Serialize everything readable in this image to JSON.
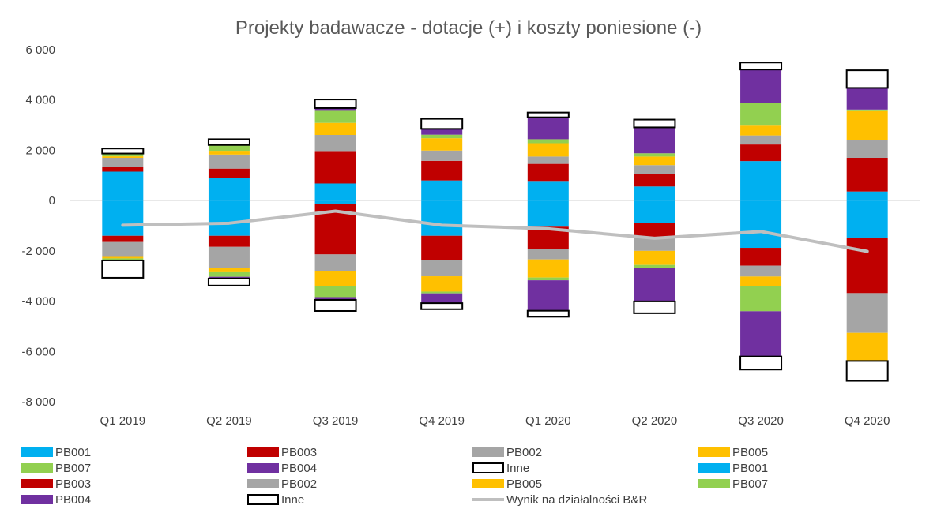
{
  "chart_data": {
    "type": "bar",
    "stacked": true,
    "title": "Projekty badawacze - dotacje (+) i koszty poniesione (-)",
    "xlabel": "",
    "ylabel": "",
    "categories": [
      "Q1 2019",
      "Q2 2019",
      "Q3 2019",
      "Q4 2019",
      "Q1 2020",
      "Q2 2020",
      "Q3 2020",
      "Q4 2020"
    ],
    "ylim": [
      -8000,
      6000
    ],
    "yticks": [
      6000,
      4000,
      2000,
      0,
      -2000,
      -4000,
      -6000,
      -8000
    ],
    "ytick_labels": [
      "6 000",
      "4 000",
      "2 000",
      "0",
      "-2 000",
      "-4 000",
      "-6 000",
      "-8 000"
    ],
    "grid": false,
    "legend_position": "bottom",
    "series_positive": [
      {
        "name": "PB001",
        "color": "#00B0F0",
        "values": [
          1150,
          900,
          680,
          800,
          780,
          560,
          1570,
          360
        ]
      },
      {
        "name": "PB003",
        "color": "#C00000",
        "values": [
          180,
          370,
          1290,
          780,
          680,
          500,
          660,
          1340
        ]
      },
      {
        "name": "PB002",
        "color": "#A5A5A5",
        "values": [
          370,
          560,
          640,
          410,
          290,
          350,
          360,
          700
        ]
      },
      {
        "name": "PB005",
        "color": "#FFC000",
        "values": [
          60,
          150,
          480,
          490,
          530,
          340,
          390,
          1160
        ]
      },
      {
        "name": "PB007",
        "color": "#92D050",
        "values": [
          110,
          230,
          480,
          140,
          160,
          130,
          910,
          60
        ]
      },
      {
        "name": "PB004",
        "color": "#7030A0",
        "values": [
          0,
          0,
          110,
          230,
          870,
          1030,
          1320,
          860
        ]
      },
      {
        "name": "Inne",
        "color": "#FFFFFF",
        "values": [
          200,
          230,
          340,
          400,
          190,
          310,
          280,
          700
        ]
      }
    ],
    "series_negative": [
      {
        "name": "PB001",
        "color": "#00B0F0",
        "values": [
          -1400,
          -1400,
          -120,
          -1400,
          -1040,
          -900,
          -1880,
          -1470
        ]
      },
      {
        "name": "PB003",
        "color": "#C00000",
        "values": [
          -250,
          -440,
          -2020,
          -980,
          -880,
          -540,
          -710,
          -2210
        ]
      },
      {
        "name": "PB002",
        "color": "#A5A5A5",
        "values": [
          -590,
          -840,
          -650,
          -630,
          -420,
          -560,
          -430,
          -1580
        ]
      },
      {
        "name": "PB005",
        "color": "#FFC000",
        "values": [
          -60,
          -170,
          -610,
          -610,
          -720,
          -560,
          -390,
          -1120
        ]
      },
      {
        "name": "PB007",
        "color": "#92D050",
        "values": [
          -80,
          -180,
          -440,
          -70,
          -110,
          -110,
          -990,
          0
        ]
      },
      {
        "name": "PB004",
        "color": "#7030A0",
        "values": [
          0,
          -70,
          -110,
          -390,
          -1210,
          -1340,
          -1800,
          0
        ]
      },
      {
        "name": "Inne",
        "color": "#FFFFFF",
        "values": [
          -690,
          -280,
          -440,
          -240,
          -240,
          -470,
          -520,
          -790
        ]
      }
    ],
    "line_series": {
      "name": "Wynik na działalności B&R",
      "color": "#BFBFBF",
      "values": [
        -980,
        -900,
        -420,
        -980,
        -1120,
        -1500,
        -1230,
        -2020
      ]
    }
  },
  "legend": [
    {
      "label": "PB001",
      "color": "#00B0F0",
      "kind": "box"
    },
    {
      "label": "PB003",
      "color": "#C00000",
      "kind": "box"
    },
    {
      "label": "PB002",
      "color": "#A5A5A5",
      "kind": "box"
    },
    {
      "label": "PB005",
      "color": "#FFC000",
      "kind": "box"
    },
    {
      "label": "PB007",
      "color": "#92D050",
      "kind": "box"
    },
    {
      "label": "PB004",
      "color": "#7030A0",
      "kind": "box"
    },
    {
      "label": "Inne",
      "color": "#FFFFFF",
      "kind": "outline"
    },
    {
      "label": "PB001",
      "color": "#00B0F0",
      "kind": "box"
    },
    {
      "label": "PB003",
      "color": "#C00000",
      "kind": "box"
    },
    {
      "label": "PB002",
      "color": "#A5A5A5",
      "kind": "box"
    },
    {
      "label": "PB005",
      "color": "#FFC000",
      "kind": "box"
    },
    {
      "label": "PB007",
      "color": "#92D050",
      "kind": "box"
    },
    {
      "label": "PB004",
      "color": "#7030A0",
      "kind": "box"
    },
    {
      "label": "Inne",
      "color": "#FFFFFF",
      "kind": "outline"
    },
    {
      "label": "Wynik na działalności B&R",
      "color": "#BFBFBF",
      "kind": "line"
    }
  ]
}
